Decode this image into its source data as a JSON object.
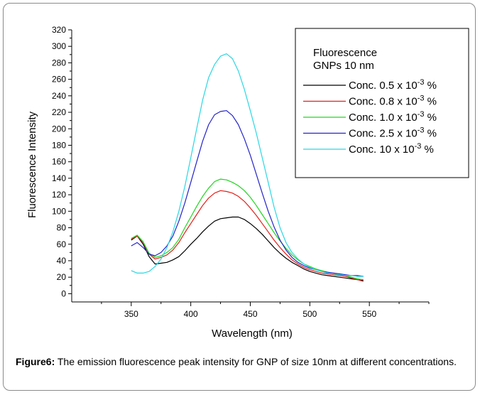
{
  "chart_data": {
    "type": "line",
    "title": "",
    "xlabel": "Wavelength (nm)",
    "ylabel": "Fluorescence Intensity",
    "xlim": [
      300,
      600
    ],
    "ylim": [
      -10,
      320
    ],
    "xticks": [
      350,
      400,
      450,
      500,
      550
    ],
    "yticks": [
      0,
      20,
      40,
      60,
      80,
      100,
      120,
      140,
      160,
      180,
      200,
      220,
      240,
      260,
      280,
      300,
      320
    ],
    "grid": false,
    "legend_position": "top-right",
    "legend_title_lines": [
      "Fluorescence",
      "GNPs 10 nm"
    ],
    "series": [
      {
        "name": "Conc. 0.5 x 10^-3 %",
        "label_main": "Conc. 0.5 x 10",
        "label_exp": "-3",
        "label_tail": " %",
        "color": "#000000",
        "x": [
          350,
          355,
          360,
          365,
          370,
          375,
          380,
          385,
          390,
          395,
          400,
          405,
          410,
          415,
          420,
          425,
          430,
          435,
          440,
          445,
          450,
          455,
          460,
          465,
          470,
          475,
          480,
          485,
          490,
          495,
          500,
          505,
          510,
          515,
          520,
          525,
          530,
          535,
          540,
          545
        ],
        "y": [
          65,
          70,
          60,
          45,
          36,
          37,
          38,
          41,
          45,
          52,
          60,
          67,
          75,
          82,
          88,
          91,
          92,
          93,
          93,
          90,
          85,
          79,
          72,
          64,
          56,
          49,
          43,
          38,
          34,
          30,
          27,
          25,
          23,
          22,
          21,
          20,
          19,
          18,
          17,
          16
        ]
      },
      {
        "name": "Conc. 0.8 x 10^-3 %",
        "label_main": "Conc. 0.8 x 10",
        "label_exp": "-3",
        "label_tail": " %",
        "color": "#e0201b",
        "x": [
          350,
          355,
          360,
          365,
          370,
          375,
          380,
          385,
          390,
          395,
          400,
          405,
          410,
          415,
          420,
          425,
          430,
          435,
          440,
          445,
          450,
          455,
          460,
          465,
          470,
          475,
          480,
          485,
          490,
          495,
          500,
          505,
          510,
          515,
          520,
          525,
          530,
          535,
          540,
          545
        ],
        "y": [
          66,
          70,
          62,
          48,
          42,
          44,
          47,
          53,
          62,
          74,
          85,
          96,
          107,
          116,
          122,
          125,
          124,
          122,
          118,
          112,
          104,
          95,
          85,
          75,
          65,
          56,
          48,
          41,
          36,
          32,
          29,
          27,
          25,
          24,
          23,
          22,
          21,
          19,
          17,
          15
        ]
      },
      {
        "name": "Conc. 1.0 x 10^-3 %",
        "label_main": "Conc. 1.0 x 10",
        "label_exp": "-3",
        "label_tail": " %",
        "color": "#1fd61f",
        "x": [
          350,
          355,
          360,
          365,
          370,
          375,
          380,
          385,
          390,
          395,
          400,
          405,
          410,
          415,
          420,
          425,
          430,
          435,
          440,
          445,
          450,
          455,
          460,
          465,
          470,
          475,
          480,
          485,
          490,
          495,
          500,
          505,
          510,
          515,
          520,
          525,
          530,
          535,
          540,
          545
        ],
        "y": [
          67,
          71,
          63,
          49,
          44,
          46,
          50,
          56,
          66,
          80,
          93,
          106,
          118,
          128,
          136,
          139,
          138,
          135,
          131,
          125,
          117,
          107,
          96,
          85,
          74,
          64,
          55,
          47,
          41,
          36,
          33,
          30,
          28,
          26,
          24,
          23,
          22,
          20,
          18,
          17
        ]
      },
      {
        "name": "Conc. 2.5 x 10^-3 %",
        "label_main": "Conc. 2.5 x 10",
        "label_exp": "-3",
        "label_tail": " %",
        "color": "#2323c8",
        "x": [
          350,
          355,
          360,
          365,
          370,
          375,
          380,
          385,
          390,
          395,
          400,
          405,
          410,
          415,
          420,
          425,
          430,
          435,
          440,
          445,
          450,
          455,
          460,
          465,
          470,
          475,
          480,
          485,
          490,
          495,
          500,
          505,
          510,
          515,
          520,
          525,
          530,
          535,
          540,
          545
        ],
        "y": [
          58,
          62,
          56,
          48,
          46,
          50,
          58,
          70,
          88,
          110,
          135,
          160,
          185,
          205,
          217,
          221,
          222,
          216,
          205,
          188,
          168,
          145,
          122,
          100,
          81,
          65,
          53,
          44,
          38,
          34,
          31,
          29,
          27,
          26,
          25,
          24,
          23,
          22,
          22,
          21
        ]
      },
      {
        "name": "Conc. 10 x 10^-3 %",
        "label_main": "Conc. 10 x 10",
        "label_exp": "-3",
        "label_tail": " %",
        "color": "#2ad7e3",
        "x": [
          350,
          355,
          360,
          365,
          370,
          375,
          380,
          385,
          390,
          395,
          400,
          405,
          410,
          415,
          420,
          425,
          430,
          435,
          440,
          445,
          450,
          455,
          460,
          465,
          470,
          475,
          480,
          485,
          490,
          495,
          500,
          505,
          510,
          515,
          520,
          525,
          530,
          535,
          540,
          545
        ],
        "y": [
          28,
          25,
          25,
          27,
          33,
          42,
          56,
          75,
          100,
          130,
          165,
          200,
          235,
          262,
          278,
          288,
          291,
          285,
          270,
          248,
          222,
          195,
          165,
          135,
          105,
          80,
          62,
          50,
          42,
          36,
          32,
          29,
          27,
          25,
          24,
          23,
          22,
          22,
          21,
          21
        ]
      }
    ]
  },
  "caption": {
    "bold": "Figure6:",
    "text": " The emission fluorescence peak intensity for GNP of size 10nm at different concentrations."
  }
}
